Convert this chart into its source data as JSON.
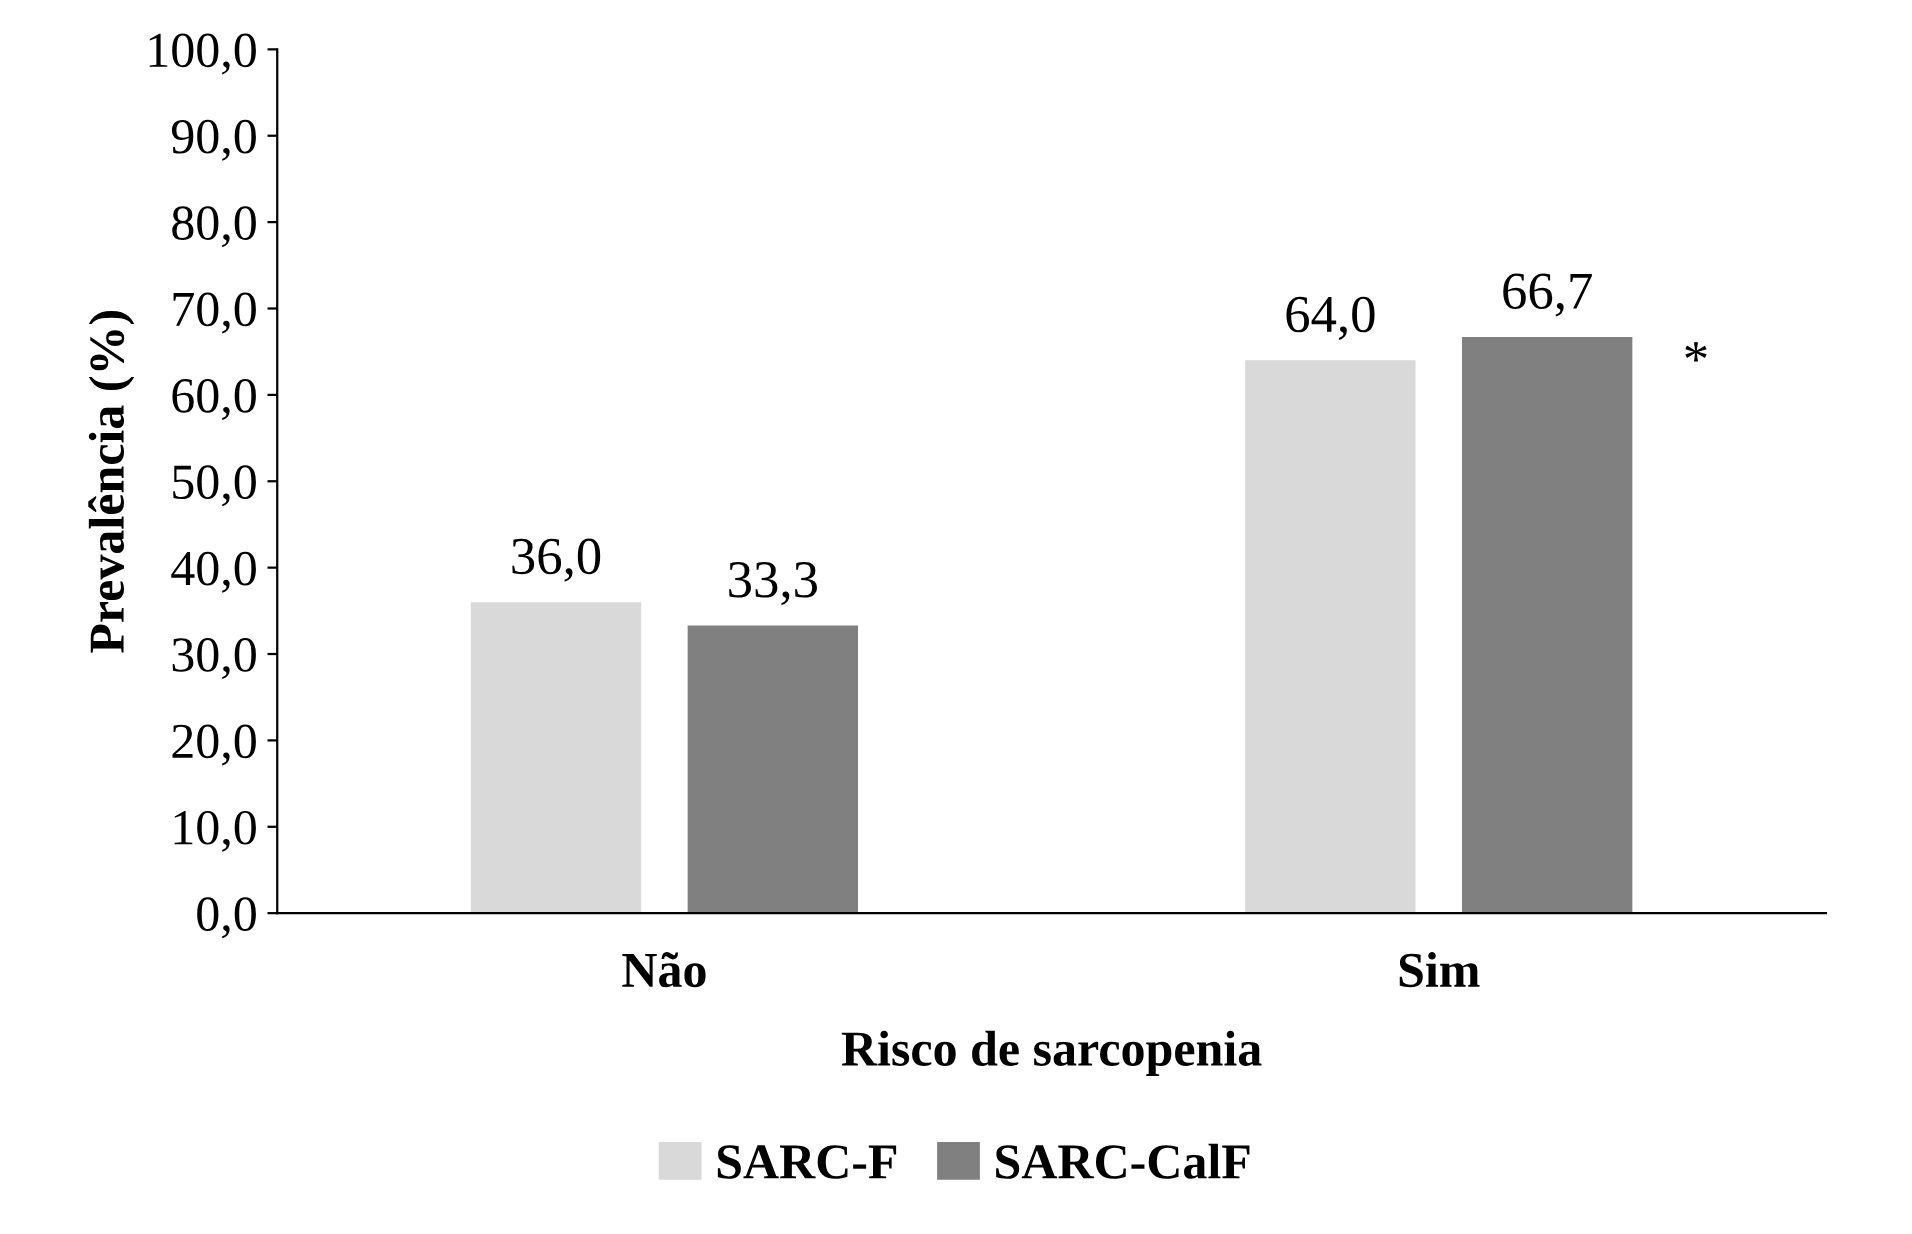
{
  "chart_data": {
    "type": "bar",
    "xlabel": "Risco de sarcopenia",
    "ylabel": "Prevalência (%)",
    "categories": [
      "Não",
      "Sim"
    ],
    "series": [
      {
        "name": "SARC-F",
        "color": "#d9d9d9",
        "values": [
          36.0,
          64.0
        ],
        "value_labels": [
          "36,0",
          "64,0"
        ]
      },
      {
        "name": "SARC-CalF",
        "color": "#808080",
        "values": [
          33.3,
          66.7
        ],
        "value_labels": [
          "33,3",
          "66,7"
        ]
      }
    ],
    "annotations": [
      "*"
    ],
    "ylim": [
      0,
      100
    ],
    "yticks": [
      {
        "value": 0,
        "label": "0,0"
      },
      {
        "value": 10,
        "label": "10,0"
      },
      {
        "value": 20,
        "label": "20,0"
      },
      {
        "value": 30,
        "label": "30,0"
      },
      {
        "value": 40,
        "label": "40,0"
      },
      {
        "value": 50,
        "label": "50,0"
      },
      {
        "value": 60,
        "label": "60,0"
      },
      {
        "value": 70,
        "label": "70,0"
      },
      {
        "value": 80,
        "label": "80,0"
      },
      {
        "value": 90,
        "label": "90,0"
      },
      {
        "value": 100,
        "label": "100,0"
      }
    ],
    "grid": false,
    "legend": "bottom"
  }
}
